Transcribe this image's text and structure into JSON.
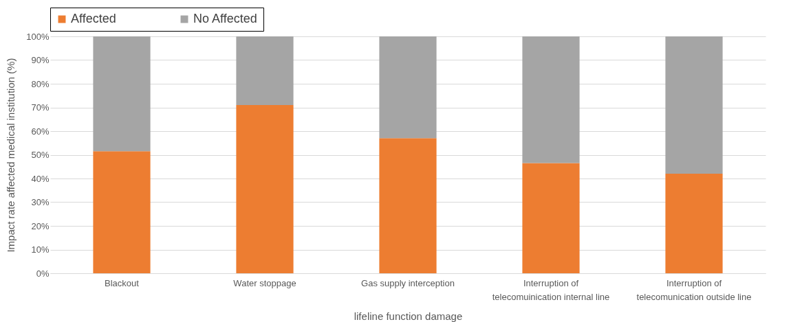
{
  "chart_data": {
    "type": "bar",
    "stacked": true,
    "xlabel": "lifeline function damage",
    "ylabel": "Impact rate affected medical institution (%)",
    "categories": [
      "Blackout",
      "Water stoppage",
      "Gas supply interception",
      "Interruption of telecomuinication internal line",
      "Interruption of telecomunication outside line"
    ],
    "series": [
      {
        "name": "Affected",
        "color": "#ed7d31",
        "values": [
          51.5,
          71,
          57,
          46.5,
          42
        ]
      },
      {
        "name": "No Affected",
        "color": "#a5a5a5",
        "values": [
          48.5,
          29,
          43,
          53.5,
          58
        ]
      }
    ],
    "ylim": [
      0,
      100
    ],
    "yticks": [
      {
        "value": 0,
        "label": "0%"
      },
      {
        "value": 10,
        "label": "10%"
      },
      {
        "value": 20,
        "label": "20%"
      },
      {
        "value": 30,
        "label": "30%"
      },
      {
        "value": 40,
        "label": "40%"
      },
      {
        "value": 50,
        "label": "50%"
      },
      {
        "value": 60,
        "label": "60%"
      },
      {
        "value": 70,
        "label": "70%"
      },
      {
        "value": 80,
        "label": "80%"
      },
      {
        "value": 90,
        "label": "90%"
      },
      {
        "value": 100,
        "label": "100%"
      }
    ],
    "grid": "y",
    "legend": "top"
  }
}
